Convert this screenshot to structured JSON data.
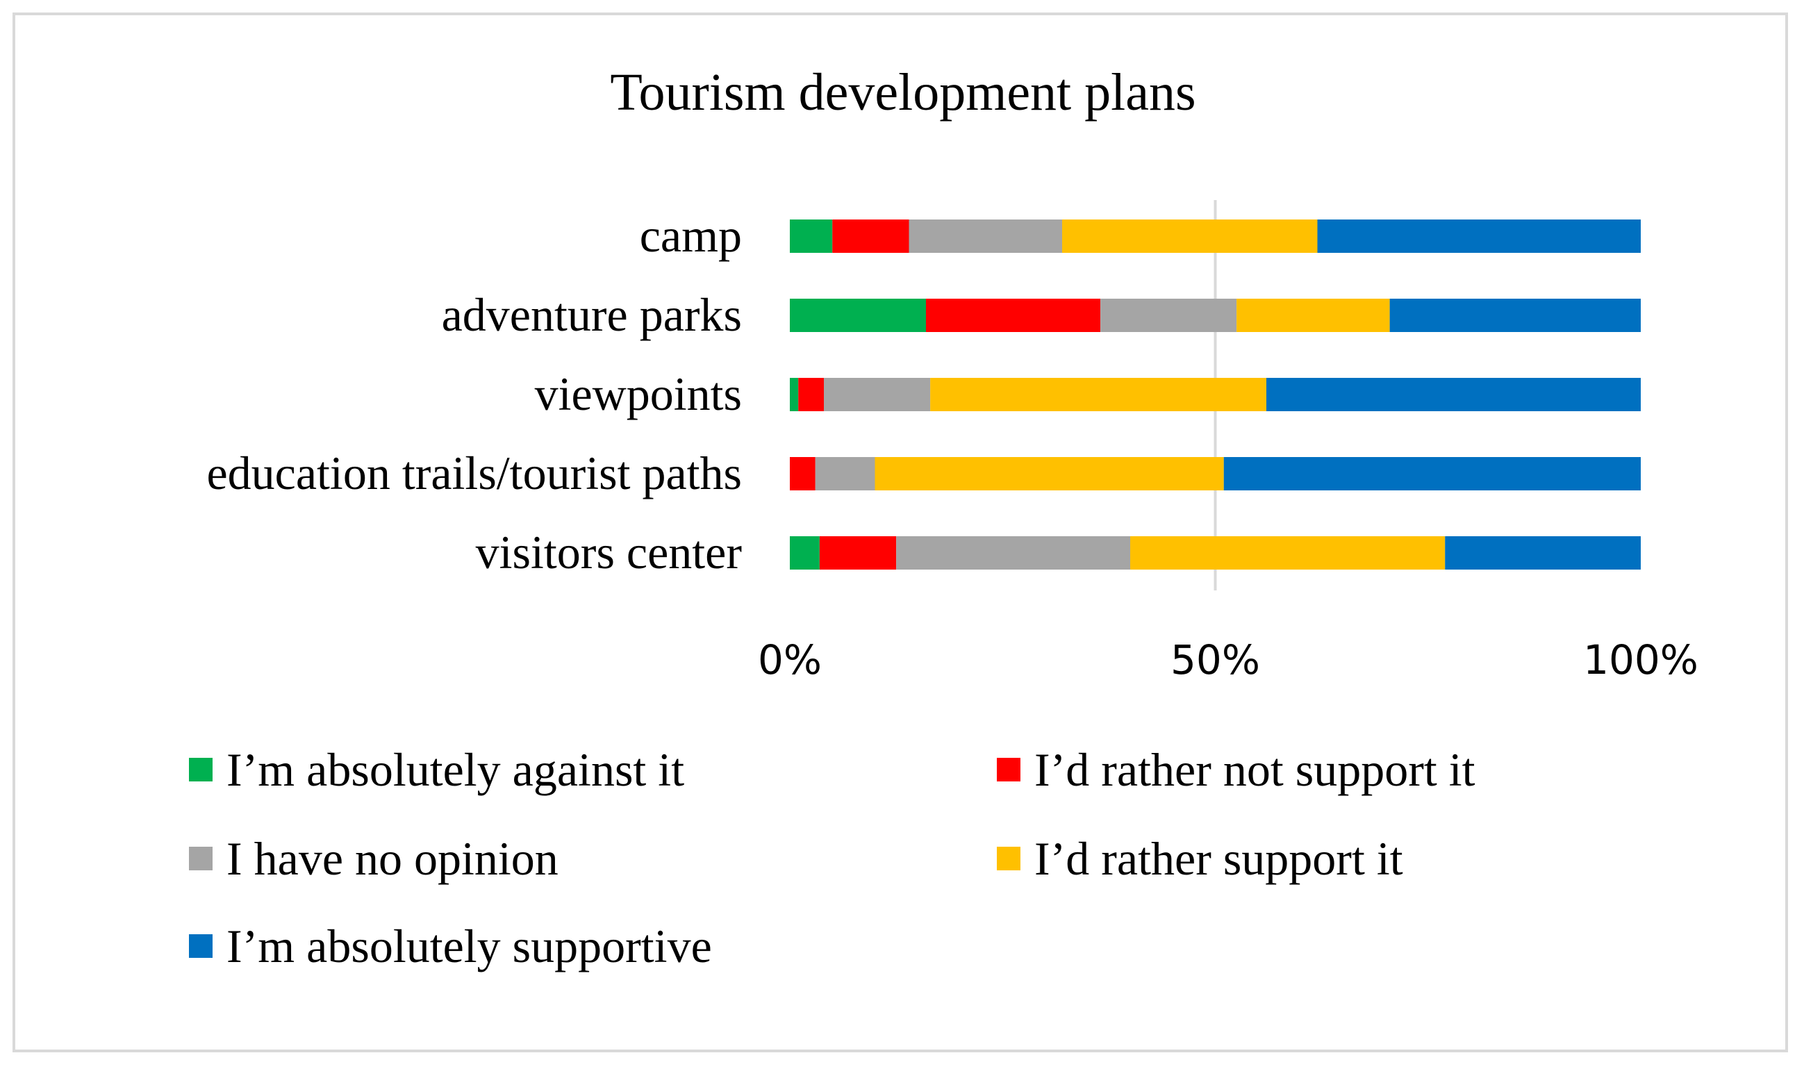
{
  "chart_data": {
    "type": "bar",
    "orientation": "horizontal",
    "stacked": "percent",
    "title": "Tourism development plans",
    "xlabel": "",
    "ylabel": "",
    "xlim": [
      0,
      100
    ],
    "x_ticks": [
      "0%",
      "50%",
      "100%"
    ],
    "grid": "vertical gridline at 50%",
    "legend_position": "bottom",
    "categories": [
      "camp",
      "adventure parks",
      "viewpoints",
      "education trails/tourist paths",
      "visitors center"
    ],
    "series": [
      {
        "name": "I’m absolutely against it",
        "color": "#00b050",
        "values": [
          5,
          16,
          1,
          0,
          3.5
        ]
      },
      {
        "name": "I’d rather not support it",
        "color": "#ff0000",
        "values": [
          9,
          20.5,
          3,
          3,
          9
        ]
      },
      {
        "name": "I have no opinion",
        "color": "#a5a5a5",
        "values": [
          18,
          16,
          12.5,
          7,
          27.5
        ]
      },
      {
        "name": "I’d rather support it",
        "color": "#ffc000",
        "values": [
          30,
          18,
          39.5,
          41,
          37
        ]
      },
      {
        "name": "I’m absolutely supportive",
        "color": "#0070c0",
        "values": [
          38,
          29.5,
          44,
          49,
          23
        ]
      }
    ]
  }
}
